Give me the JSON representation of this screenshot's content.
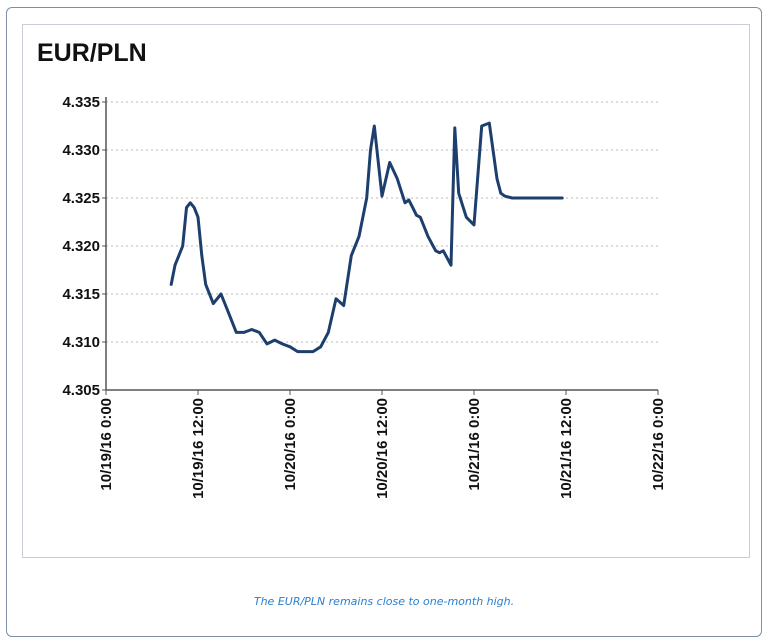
{
  "caption": "The EUR/PLN remains close to one-month high.",
  "chart_data": {
    "type": "line",
    "title": "EUR/PLN",
    "xlabel": "",
    "ylabel": "",
    "ylim": [
      4.305,
      4.335
    ],
    "yticks": [
      "4.335",
      "4.330",
      "4.325",
      "4.320",
      "4.315",
      "4.310",
      "4.305"
    ],
    "xlim": [
      "10/19/16 0:00",
      "10/22/16 0:00"
    ],
    "xticks": [
      "10/19/16 0:00",
      "10/19/16 12:00",
      "10/20/16 0:00",
      "10/20/16 12:00",
      "10/21/16 0:00",
      "10/21/16 12:00",
      "10/22/16 0:00"
    ],
    "grid": "horizontal dotted",
    "line_color": "#1d3f6e",
    "series": [
      {
        "x": [
          "10/19/16 8:30",
          "10/19/16 9:00",
          "10/19/16 10:00",
          "10/19/16 10:30",
          "10/19/16 11:00",
          "10/19/16 11:30",
          "10/19/16 12:00",
          "10/19/16 12:30",
          "10/19/16 13:00",
          "10/19/16 14:00",
          "10/19/16 15:00",
          "10/19/16 16:00",
          "10/19/16 16:30",
          "10/19/16 17:00",
          "10/19/16 18:00",
          "10/19/16 19:00",
          "10/19/16 20:00",
          "10/19/16 21:00",
          "10/19/16 22:00",
          "10/19/16 23:00",
          "10/20/16 0:00",
          "10/20/16 1:00",
          "10/20/16 2:00",
          "10/20/16 3:00",
          "10/20/16 4:00",
          "10/20/16 5:00",
          "10/20/16 6:00",
          "10/20/16 7:00",
          "10/20/16 8:00",
          "10/20/16 9:00",
          "10/20/16 10:00",
          "10/20/16 10:30",
          "10/20/16 11:00",
          "10/20/16 12:00",
          "10/20/16 13:00",
          "10/20/16 14:00",
          "10/20/16 15:00",
          "10/20/16 15:30",
          "10/20/16 16:00",
          "10/20/16 16:30",
          "10/20/16 17:00",
          "10/20/16 18:00",
          "10/20/16 19:00",
          "10/20/16 19:30",
          "10/20/16 20:00",
          "10/20/16 21:00",
          "10/20/16 21:30",
          "10/20/16 22:00",
          "10/20/16 23:00",
          "10/21/16 0:00",
          "10/21/16 1:00",
          "10/21/16 2:00",
          "10/21/16 3:00",
          "10/21/16 3:30",
          "10/21/16 4:00",
          "10/21/16 5:00",
          "10/21/16 6:00",
          "10/21/16 7:00",
          "10/21/16 7:30",
          "10/21/16 8:00",
          "10/21/16 9:00",
          "10/21/16 9:30",
          "10/21/16 10:00",
          "10/21/16 11:00",
          "10/21/16 11:30"
        ],
        "values": [
          4.316,
          4.318,
          4.32,
          4.324,
          4.3245,
          4.324,
          4.323,
          4.319,
          4.316,
          4.314,
          4.315,
          4.313,
          4.312,
          4.311,
          4.311,
          4.3113,
          4.311,
          4.3098,
          4.3102,
          4.3098,
          4.3095,
          4.309,
          4.309,
          4.309,
          4.3095,
          4.311,
          4.3145,
          4.3138,
          4.319,
          4.321,
          4.325,
          4.33,
          4.3325,
          4.3252,
          4.3287,
          4.327,
          4.3245,
          4.3248,
          4.324,
          4.3232,
          4.323,
          4.321,
          4.3195,
          4.3193,
          4.3195,
          4.318,
          4.3323,
          4.3255,
          4.323,
          4.3222,
          4.3325,
          4.3328,
          4.327,
          4.3255,
          4.3252,
          4.325,
          4.325,
          4.325,
          4.325,
          4.325,
          4.325,
          4.325,
          4.325,
          4.325,
          4.325
        ]
      }
    ]
  }
}
